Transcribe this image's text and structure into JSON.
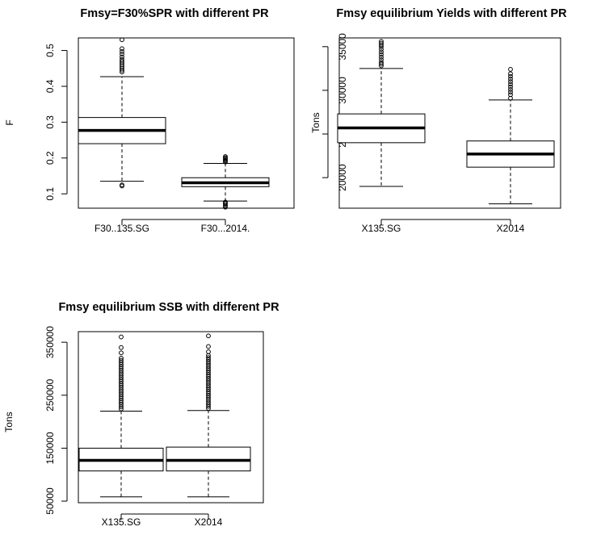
{
  "chart_data": [
    {
      "type": "box",
      "title": "Fmsy=F30%SPR with different PR",
      "xlabel": "",
      "ylabel": "F",
      "ylim": [
        0.06,
        0.535
      ],
      "yticks": [
        0.1,
        0.2,
        0.3,
        0.4,
        0.5
      ],
      "grid": false,
      "boxes": [
        {
          "label": "F30..135.SG",
          "min": 0.135,
          "q1": 0.24,
          "median": 0.277,
          "q3": 0.313,
          "max": 0.427,
          "outliers": [
            0.122,
            0.125,
            0.44,
            0.445,
            0.45,
            0.455,
            0.46,
            0.465,
            0.47,
            0.475,
            0.482,
            0.49,
            0.497,
            0.505,
            0.53
          ]
        },
        {
          "label": "F30...2014.",
          "min": 0.08,
          "q1": 0.12,
          "median": 0.131,
          "q3": 0.145,
          "max": 0.185,
          "outliers": [
            0.063,
            0.067,
            0.071,
            0.074,
            0.077,
            0.189,
            0.192,
            0.195,
            0.198,
            0.201,
            0.204
          ]
        }
      ]
    },
    {
      "type": "box",
      "title": "Fmsy equilibrium Yields with different PR",
      "xlabel": "",
      "ylabel": "Tons",
      "ylim": [
        16500,
        36000
      ],
      "yticks": [
        20000,
        25000,
        30000,
        35000
      ],
      "grid": false,
      "boxes": [
        {
          "label": "X135.SG",
          "min": 19000,
          "q1": 24000,
          "median": 25700,
          "q3": 27300,
          "max": 32500,
          "outliers": [
            32800,
            33000,
            33200,
            33500,
            33800,
            34100,
            34400,
            34700,
            35000,
            35200,
            35400,
            35600
          ]
        },
        {
          "label": "X2014",
          "min": 17000,
          "q1": 21200,
          "median": 22700,
          "q3": 24200,
          "max": 28900,
          "outliers": [
            29100,
            29500,
            29800,
            30100,
            30400,
            30700,
            31000,
            31300,
            31600,
            31900,
            32400
          ]
        }
      ]
    },
    {
      "type": "box",
      "title": "Fmsy equilibrium SSB with different PR",
      "xlabel": "",
      "ylabel": "Tons",
      "ylim": [
        47000,
        370000
      ],
      "yticks": [
        50000,
        150000,
        250000,
        350000
      ],
      "grid": false,
      "boxes": [
        {
          "label": "X135.SG",
          "min": 58000,
          "q1": 107000,
          "median": 127000,
          "q3": 150000,
          "max": 220000,
          "outliers": [
            224000,
            228000,
            232000,
            236000,
            240000,
            244000,
            248000,
            252000,
            256000,
            260000,
            264000,
            268000,
            272000,
            276000,
            280000,
            284000,
            288000,
            292000,
            296000,
            300000,
            304000,
            308000,
            312000,
            316000,
            320000,
            330000,
            340000,
            360000
          ]
        },
        {
          "label": "X2014",
          "min": 58000,
          "q1": 107000,
          "median": 127000,
          "q3": 152000,
          "max": 221000,
          "outliers": [
            225000,
            229000,
            233000,
            237000,
            241000,
            245000,
            249000,
            253000,
            257000,
            261000,
            265000,
            269000,
            273000,
            277000,
            281000,
            285000,
            289000,
            293000,
            297000,
            301000,
            305000,
            309000,
            313000,
            317000,
            321000,
            325000,
            332000,
            342000,
            362000
          ]
        }
      ]
    }
  ]
}
